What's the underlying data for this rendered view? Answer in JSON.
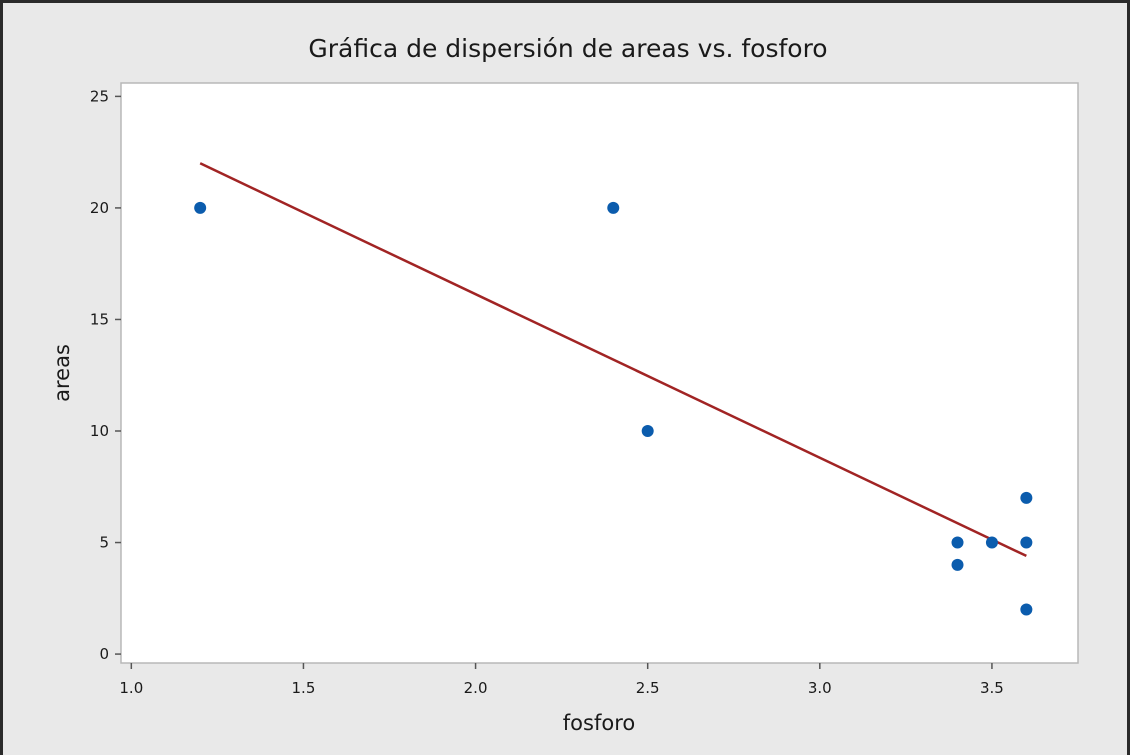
{
  "chart_data": {
    "type": "scatter",
    "title": "Gráfica de dispersión de areas vs. fosforo",
    "xlabel": "fosforo",
    "ylabel": "areas",
    "xlim": [
      0.97,
      3.75
    ],
    "ylim": [
      -0.4,
      25.6
    ],
    "xticks": [
      1.0,
      1.5,
      2.0,
      2.5,
      3.0,
      3.5
    ],
    "yticks": [
      0,
      5,
      10,
      15,
      20,
      25
    ],
    "xtick_labels": [
      "1.0",
      "1.5",
      "2.0",
      "2.5",
      "3.0",
      "3.5"
    ],
    "ytick_labels": [
      "0",
      "5",
      "10",
      "15",
      "20",
      "25"
    ],
    "grid": false,
    "points": [
      {
        "x": 1.2,
        "y": 20
      },
      {
        "x": 2.4,
        "y": 20
      },
      {
        "x": 2.5,
        "y": 10
      },
      {
        "x": 3.4,
        "y": 5
      },
      {
        "x": 3.4,
        "y": 4
      },
      {
        "x": 3.5,
        "y": 5
      },
      {
        "x": 3.6,
        "y": 7
      },
      {
        "x": 3.6,
        "y": 5
      },
      {
        "x": 3.6,
        "y": 2
      }
    ],
    "fit_line": {
      "x": [
        1.2,
        3.6
      ],
      "y": [
        22.0,
        4.4
      ]
    },
    "colors": {
      "points": "#0b5cad",
      "fit_line": "#a12424",
      "background": "#e9e9e9",
      "plot_area": "#ffffff"
    }
  }
}
